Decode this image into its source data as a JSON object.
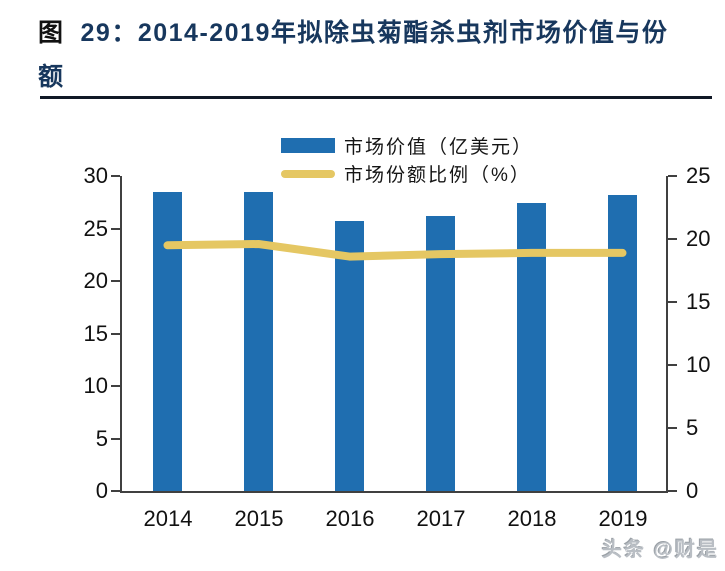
{
  "page": {
    "title_line1_prefix": "图",
    "title_line1_rest": "29：2014-2019年拟除虫菊酯杀虫剂市场价值与份",
    "title_line2": "额",
    "watermark": "头条 @财是"
  },
  "chart_data": {
    "type": "bar",
    "title": "图 29：2014-2019年拟除虫菊酯杀虫剂市场价值与份额",
    "categories": [
      "2014",
      "2015",
      "2016",
      "2017",
      "2018",
      "2019"
    ],
    "series": [
      {
        "name": "市场价值（亿美元）",
        "type": "bar",
        "axis": "left",
        "color": "#1F6EB0",
        "values": [
          28.5,
          28.5,
          25.7,
          26.2,
          27.4,
          28.2
        ]
      },
      {
        "name": "市场份额比例（%）",
        "type": "line",
        "axis": "right",
        "color": "#E5C763",
        "values": [
          19.5,
          19.6,
          18.6,
          18.8,
          18.9,
          18.9
        ]
      }
    ],
    "left_axis": {
      "min": 0,
      "max": 30,
      "step": 5
    },
    "right_axis": {
      "min": 0,
      "max": 25,
      "step": 5
    },
    "legend_position": "top-center",
    "grid": false
  },
  "colors": {
    "bar": "#1F6EB0",
    "line": "#E5C763",
    "title": "#17375D",
    "axis": "#404040",
    "text": "#111111",
    "divider": "#101826",
    "watermark": "#B9BEC4"
  }
}
